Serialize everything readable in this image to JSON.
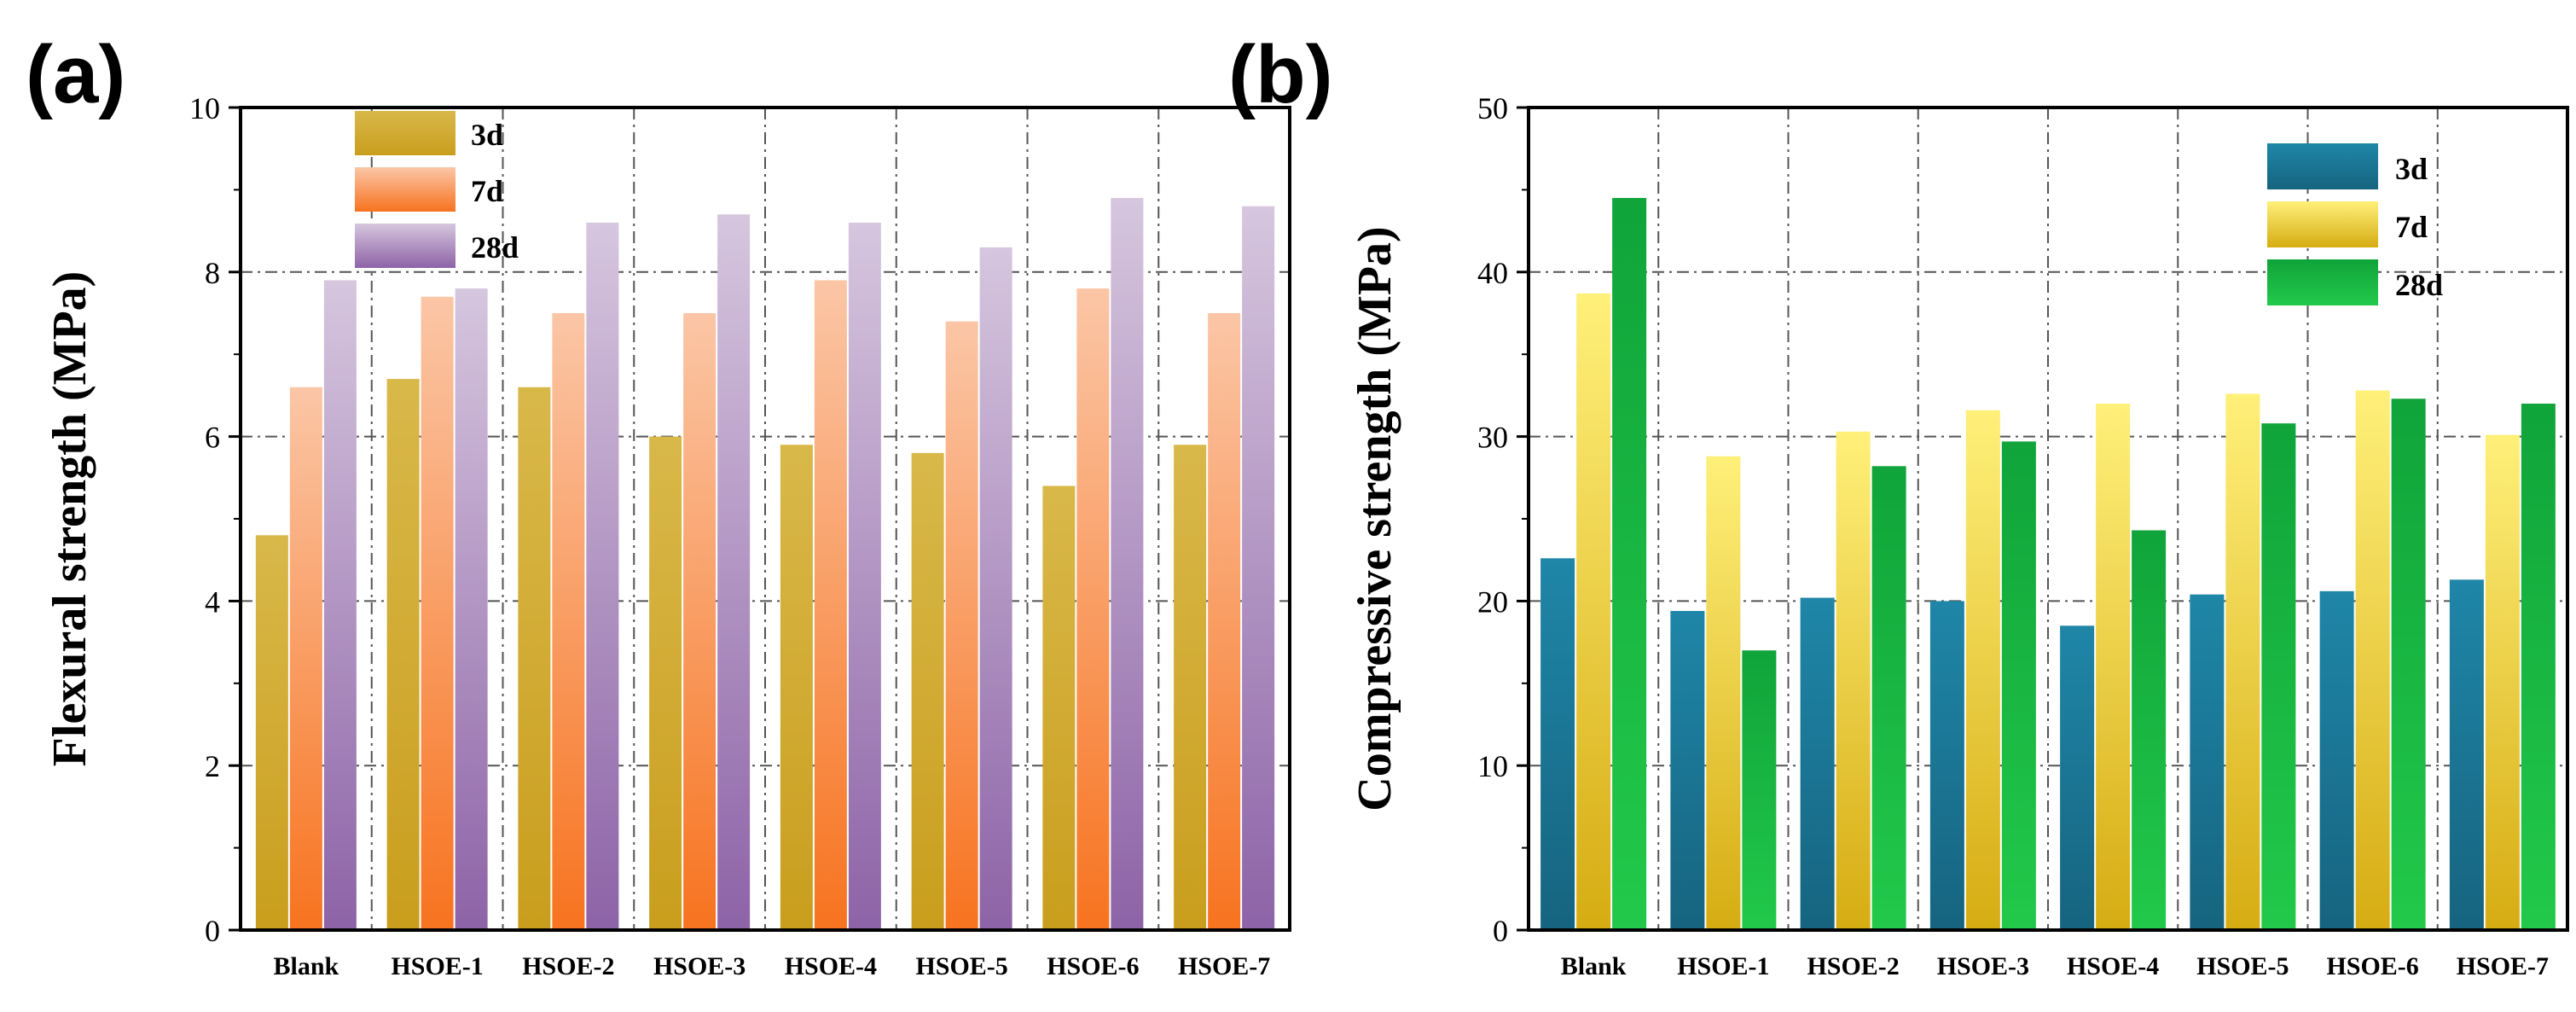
{
  "chart_data": [
    {
      "type": "bar",
      "panel_label": "(a)",
      "title": "",
      "xlabel": "",
      "ylabel": "Flexural strength (MPa)",
      "ylim": [
        0,
        10
      ],
      "yticks": [
        0,
        2,
        4,
        6,
        8,
        10
      ],
      "grid": true,
      "legend_position": "top-left",
      "categories": [
        "Blank",
        "HSOE-1",
        "HSOE-2",
        "HSOE-3",
        "HSOE-4",
        "HSOE-5",
        "HSOE-6",
        "HSOE-7"
      ],
      "series": [
        {
          "name": "3d",
          "values": [
            4.8,
            6.7,
            6.6,
            6.0,
            5.9,
            5.8,
            5.4,
            5.9
          ],
          "gradient": [
            "#d9b84a",
            "#c99e1d"
          ]
        },
        {
          "name": "7d",
          "values": [
            6.6,
            7.7,
            7.5,
            7.5,
            7.9,
            7.4,
            7.8,
            7.5
          ],
          "gradient": [
            "#fbc6a6",
            "#f7731f"
          ]
        },
        {
          "name": "28d",
          "values": [
            7.9,
            7.8,
            8.6,
            8.7,
            8.6,
            8.3,
            8.9,
            8.8
          ],
          "gradient": [
            "#d6c6de",
            "#8d63a7"
          ]
        }
      ]
    },
    {
      "type": "bar",
      "panel_label": "(b)",
      "title": "",
      "xlabel": "",
      "ylabel": "Compressive strength (MPa)",
      "ylim": [
        0,
        50
      ],
      "yticks": [
        0,
        10,
        20,
        30,
        40,
        50
      ],
      "grid": true,
      "legend_position": "top-right",
      "categories": [
        "Blank",
        "HSOE-1",
        "HSOE-2",
        "HSOE-3",
        "HSOE-4",
        "HSOE-5",
        "HSOE-6",
        "HSOE-7"
      ],
      "series": [
        {
          "name": "3d",
          "values": [
            22.6,
            19.4,
            20.2,
            20.0,
            18.5,
            20.4,
            20.6,
            21.3
          ],
          "gradient": [
            "#1f86a8",
            "#16647f"
          ]
        },
        {
          "name": "7d",
          "values": [
            38.7,
            28.8,
            30.3,
            31.6,
            32.0,
            32.6,
            32.8,
            30.1
          ],
          "gradient": [
            "#fff07a",
            "#d6ac12"
          ]
        },
        {
          "name": "28d",
          "values": [
            44.5,
            17.0,
            28.2,
            29.7,
            24.3,
            30.8,
            32.3,
            32.0
          ],
          "gradient": [
            "#10a43a",
            "#22c94a"
          ]
        }
      ]
    }
  ]
}
